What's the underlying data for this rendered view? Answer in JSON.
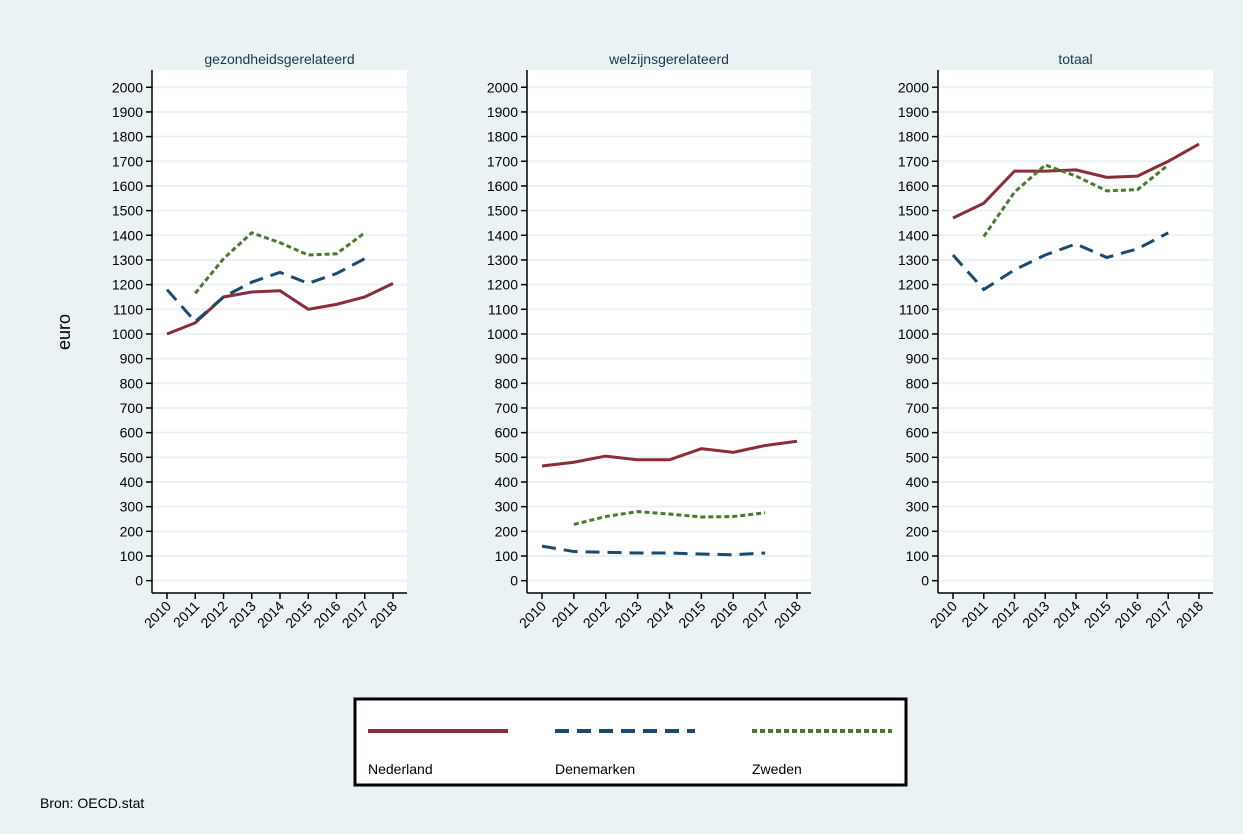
{
  "source": "Bron: OECD.stat",
  "chart_data": [
    {
      "type": "line",
      "title": "gezondheidsgerelateerd",
      "ylabel": "euro",
      "categories": [
        "2010",
        "2011",
        "2012",
        "2013",
        "2014",
        "2015",
        "2016",
        "2017",
        "2018"
      ],
      "ylim": [
        -50,
        2070
      ],
      "yticks": [
        0,
        100,
        200,
        300,
        400,
        500,
        600,
        700,
        800,
        900,
        1000,
        1100,
        1200,
        1300,
        1400,
        1500,
        1600,
        1700,
        1800,
        1900,
        2000
      ],
      "grid": true,
      "series": [
        {
          "name": "Nederland",
          "color": "#8b2c3a",
          "dash": "solid",
          "values": [
            1000,
            1045,
            1150,
            1170,
            1175,
            1100,
            1120,
            1150,
            1205
          ]
        },
        {
          "name": "Denemarken",
          "color": "#1a4a6e",
          "dash": "dashed",
          "values": [
            1180,
            1050,
            1150,
            1210,
            1250,
            1205,
            1245,
            1305,
            null
          ]
        },
        {
          "name": "Zweden",
          "color": "#4a7a2e",
          "dash": "dotted",
          "values": [
            null,
            1165,
            1305,
            1410,
            1370,
            1320,
            1325,
            1410,
            null
          ]
        }
      ]
    },
    {
      "type": "line",
      "title": "welzijnsgerelateerd",
      "categories": [
        "2010",
        "2011",
        "2012",
        "2013",
        "2014",
        "2015",
        "2016",
        "2017",
        "2018"
      ],
      "ylim": [
        -50,
        2070
      ],
      "yticks": [
        0,
        100,
        200,
        300,
        400,
        500,
        600,
        700,
        800,
        900,
        1000,
        1100,
        1200,
        1300,
        1400,
        1500,
        1600,
        1700,
        1800,
        1900,
        2000
      ],
      "grid": true,
      "series": [
        {
          "name": "Nederland",
          "color": "#8b2c3a",
          "dash": "solid",
          "values": [
            465,
            480,
            505,
            490,
            490,
            535,
            520,
            548,
            565
          ]
        },
        {
          "name": "Denemarken",
          "color": "#1a4a6e",
          "dash": "dashed",
          "values": [
            140,
            118,
            115,
            112,
            112,
            108,
            105,
            112,
            null
          ]
        },
        {
          "name": "Zweden",
          "color": "#4a7a2e",
          "dash": "dotted",
          "values": [
            null,
            228,
            260,
            280,
            270,
            258,
            260,
            275,
            null
          ]
        }
      ]
    },
    {
      "type": "line",
      "title": "totaal",
      "categories": [
        "2010",
        "2011",
        "2012",
        "2013",
        "2014",
        "2015",
        "2016",
        "2017",
        "2018"
      ],
      "ylim": [
        -50,
        2070
      ],
      "yticks": [
        0,
        100,
        200,
        300,
        400,
        500,
        600,
        700,
        800,
        900,
        1000,
        1100,
        1200,
        1300,
        1400,
        1500,
        1600,
        1700,
        1800,
        1900,
        2000
      ],
      "grid": true,
      "series": [
        {
          "name": "Nederland",
          "color": "#8b2c3a",
          "dash": "solid",
          "values": [
            1470,
            1530,
            1660,
            1660,
            1665,
            1635,
            1640,
            1700,
            1770
          ]
        },
        {
          "name": "Denemarken",
          "color": "#1a4a6e",
          "dash": "dashed",
          "values": [
            1320,
            1180,
            1260,
            1320,
            1365,
            1310,
            1345,
            1410,
            null
          ]
        },
        {
          "name": "Zweden",
          "color": "#4a7a2e",
          "dash": "dotted",
          "values": [
            null,
            1395,
            1575,
            1685,
            1640,
            1580,
            1585,
            1685,
            null
          ]
        }
      ]
    }
  ]
}
